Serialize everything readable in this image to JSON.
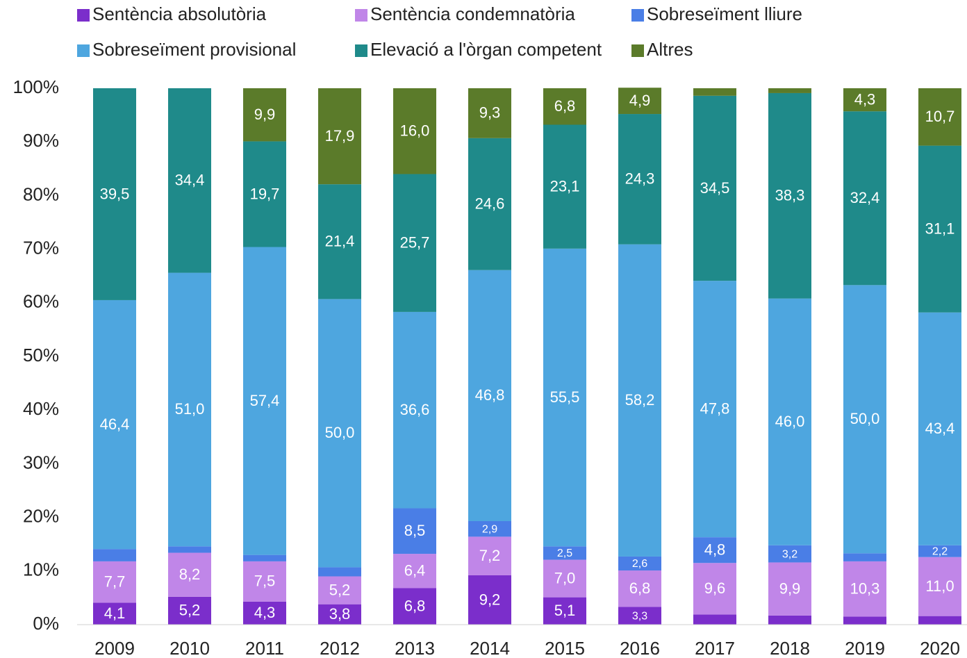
{
  "chart_data": {
    "type": "bar",
    "stacked": true,
    "categories": [
      "2009",
      "2010",
      "2011",
      "2012",
      "2013",
      "2014",
      "2015",
      "2016",
      "2017",
      "2018",
      "2019",
      "2020"
    ],
    "series": [
      {
        "name": "Sentència absolutòria",
        "color": "#7b2ecb",
        "values": [
          4.1,
          5.2,
          4.3,
          3.8,
          6.8,
          9.2,
          5.1,
          3.3,
          1.9,
          1.7,
          1.5,
          1.6
        ],
        "value_labels": [
          "4,1",
          "5,2",
          "4,3",
          "3,8",
          "6,8",
          "9,2",
          "5,1",
          "3,3",
          null,
          null,
          null,
          null
        ]
      },
      {
        "name": "Sentència condemnatòria",
        "color": "#c086e8",
        "values": [
          7.7,
          8.2,
          7.5,
          5.2,
          6.4,
          7.2,
          7.0,
          6.8,
          9.6,
          9.9,
          10.3,
          11.0
        ],
        "value_labels": [
          "7,7",
          "8,2",
          "7,5",
          "5,2",
          "6,4",
          "7,2",
          "7,0",
          "6,8",
          "9,6",
          "9,9",
          "10,3",
          "11,0"
        ]
      },
      {
        "name": "Sobreseïment lliure",
        "color": "#4a7ee6",
        "values": [
          2.3,
          1.2,
          1.2,
          1.7,
          8.5,
          2.9,
          2.5,
          2.6,
          4.8,
          3.2,
          1.5,
          2.2
        ],
        "value_labels": [
          null,
          null,
          null,
          null,
          "8,5",
          "2,9",
          "2,5",
          "2,6",
          "4,8",
          "3,2",
          null,
          "2,2"
        ]
      },
      {
        "name": "Sobreseïment provisional",
        "color": "#4ea6df",
        "values": [
          46.4,
          51.0,
          57.4,
          50.0,
          36.6,
          46.8,
          55.5,
          58.2,
          47.8,
          46.0,
          50.0,
          43.4
        ],
        "value_labels": [
          "46,4",
          "51,0",
          "57,4",
          "50,0",
          "36,6",
          "46,8",
          "55,5",
          "58,2",
          "47,8",
          "46,0",
          "50,0",
          "43,4"
        ]
      },
      {
        "name": "Elevació a l'òrgan competent",
        "color": "#1f8a8a",
        "values": [
          39.5,
          34.4,
          19.7,
          21.4,
          25.7,
          24.6,
          23.1,
          24.3,
          34.5,
          38.3,
          32.4,
          31.1
        ],
        "value_labels": [
          "39,5",
          "34,4",
          "19,7",
          "21,4",
          "25,7",
          "24,6",
          "23,1",
          "24,3",
          "34,5",
          "38,3",
          "32,4",
          "31,1"
        ]
      },
      {
        "name": "Altres",
        "color": "#5b7b2a",
        "values": [
          0,
          0,
          9.9,
          17.9,
          16.0,
          9.3,
          6.8,
          4.9,
          1.4,
          0.9,
          4.3,
          10.7
        ],
        "value_labels": [
          null,
          null,
          "9,9",
          "17,9",
          "16,0",
          "9,3",
          "6,8",
          "4,9",
          null,
          null,
          "4,3",
          "10,7"
        ]
      }
    ],
    "ylim": [
      0,
      100
    ],
    "yticks": [
      {
        "value": 0,
        "label": "0%"
      },
      {
        "value": 10,
        "label": "10%"
      },
      {
        "value": 20,
        "label": "20%"
      },
      {
        "value": 30,
        "label": "30%"
      },
      {
        "value": 40,
        "label": "40%"
      },
      {
        "value": 50,
        "label": "50%"
      },
      {
        "value": 60,
        "label": "60%"
      },
      {
        "value": 70,
        "label": "70%"
      },
      {
        "value": 80,
        "label": "80%"
      },
      {
        "value": 90,
        "label": "90%"
      },
      {
        "value": 100,
        "label": "100%"
      }
    ],
    "legend": "top"
  }
}
